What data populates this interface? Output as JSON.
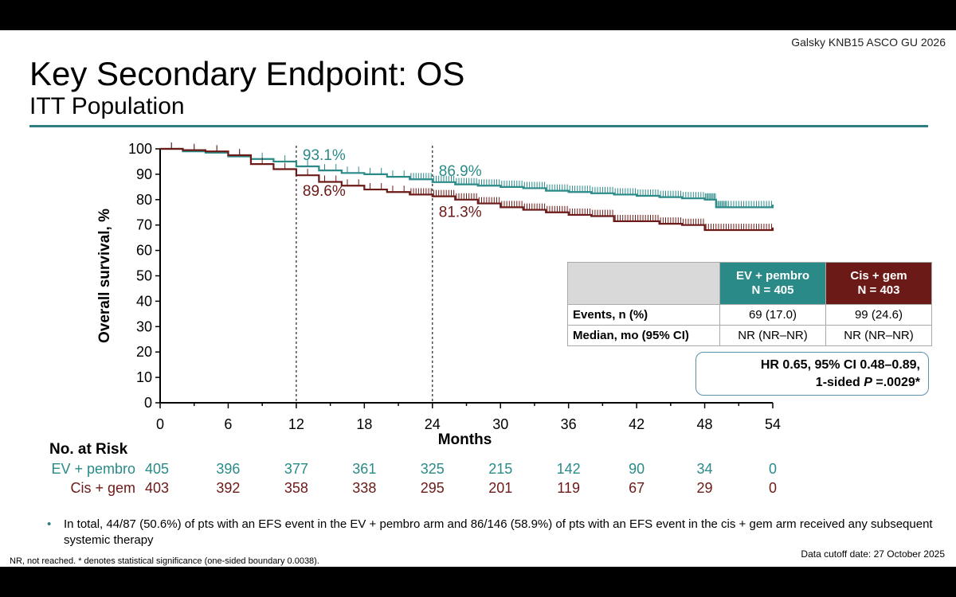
{
  "header": {
    "citation": "Galsky KNB15 ASCO GU 2026",
    "title": "Key Secondary Endpoint: OS",
    "subtitle": "ITT Population"
  },
  "colors": {
    "ev": "#2a8a88",
    "cis": "#6b1a17",
    "rule": "#2e7d7f",
    "header_gray": "#d9d9d9"
  },
  "chart_data": {
    "type": "line",
    "title": "Key Secondary Endpoint: OS",
    "xlabel": "Months",
    "ylabel": "Overall survival, %",
    "xlim": [
      0,
      54
    ],
    "ylim": [
      0,
      100
    ],
    "xticks": [
      0,
      6,
      12,
      18,
      24,
      30,
      36,
      42,
      48,
      54
    ],
    "yticks": [
      0,
      10,
      20,
      30,
      40,
      50,
      60,
      70,
      80,
      90,
      100
    ],
    "reference_lines_x": [
      12,
      24
    ],
    "series": [
      {
        "name": "EV + pembro",
        "color": "#2a8a88",
        "x": [
          0,
          2,
          4,
          6,
          8,
          10,
          12,
          14,
          16,
          18,
          20,
          22,
          24,
          26,
          28,
          30,
          32,
          34,
          36,
          38,
          40,
          42,
          44,
          46,
          48,
          49,
          50,
          52,
          54
        ],
        "y": [
          100,
          99,
          98.5,
          97,
          96,
          95,
          93.1,
          91.5,
          90.5,
          90,
          89,
          88,
          86.9,
          86,
          85.5,
          85,
          84.5,
          83.5,
          83,
          82.5,
          82,
          81.5,
          81,
          80.5,
          80,
          77,
          77,
          77,
          78
        ]
      },
      {
        "name": "Cis + gem",
        "color": "#6b1a17",
        "x": [
          0,
          2,
          4,
          6,
          8,
          10,
          12,
          14,
          16,
          18,
          20,
          22,
          24,
          26,
          28,
          30,
          32,
          34,
          36,
          38,
          40,
          42,
          44,
          46,
          48,
          50,
          52,
          54
        ],
        "y": [
          100,
          99.5,
          99,
          97.5,
          94,
          92,
          89.6,
          87,
          85.5,
          84,
          83,
          82,
          81.3,
          80,
          78.5,
          77,
          76,
          75,
          74,
          73.5,
          71.5,
          71.5,
          70.5,
          70,
          68,
          68,
          68,
          69
        ]
      }
    ],
    "annotations": [
      {
        "x": 12,
        "y": 93.1,
        "text": "93.1%",
        "series": "EV + pembro"
      },
      {
        "x": 12,
        "y": 89.6,
        "text": "89.6%",
        "series": "Cis + gem"
      },
      {
        "x": 24,
        "y": 86.9,
        "text": "86.9%",
        "series": "EV + pembro"
      },
      {
        "x": 24,
        "y": 81.3,
        "text": "81.3%",
        "series": "Cis + gem"
      }
    ]
  },
  "risk": {
    "title": "No. at Risk",
    "rows": [
      {
        "label": "EV + pembro",
        "values": [
          "405",
          "396",
          "377",
          "361",
          "325",
          "215",
          "142",
          "90",
          "34",
          "0"
        ]
      },
      {
        "label": "Cis + gem",
        "values": [
          "403",
          "392",
          "358",
          "338",
          "295",
          "201",
          "119",
          "67",
          "29",
          "0"
        ]
      }
    ]
  },
  "table": {
    "col1_header": "EV + pembro\nN = 405",
    "col2_header": "Cis + gem\nN = 403",
    "rows": [
      {
        "label": "Events, n (%)",
        "ev": "69 (17.0)",
        "cis": "99 (24.6)"
      },
      {
        "label": "Median, mo (95% CI)",
        "ev": "NR (NR–NR)",
        "cis": "NR (NR–NR)"
      }
    ]
  },
  "hr_box": {
    "line1": "HR 0.65, 95% CI 0.48–0.89,",
    "line2_prefix": "1-sided ",
    "line2_p": "P",
    "line2_suffix": " =.0029*"
  },
  "footnotes": {
    "bullet": "In total, 44/87 (50.6%) of pts with an EFS event in the EV + pembro arm and 86/146 (58.9%) of pts with an EFS event in the cis + gem arm received any subsequent systemic therapy",
    "cutoff": "Data cutoff date: 27 October 2025",
    "nr_note": "NR, not reached. * denotes statistical significance (one-sided boundary 0.0038)."
  }
}
